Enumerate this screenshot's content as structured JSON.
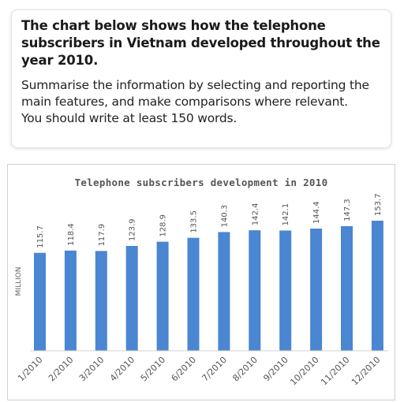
{
  "task": {
    "title": "The chart below shows how the telephone subscribers in Vietnam developed throughout the year 2010.",
    "instruction": "Summarise the information by selecting and reporting the main features, and make comparisons where relevant.",
    "requirement": "You should write at least 150 words."
  },
  "colors": {
    "bar": "#4a86d2",
    "axis": "#d0d0d0",
    "text": "#555555"
  },
  "chart_data": {
    "type": "bar",
    "title": "Telephone subscribers development in 2010",
    "xlabel": "",
    "ylabel": "MILLION",
    "categories": [
      "1/2010",
      "2/2010",
      "3/2010",
      "4/2010",
      "5/2010",
      "6/2010",
      "7/2010",
      "8/2010",
      "9/2010",
      "10/2010",
      "11/2010",
      "12/2010"
    ],
    "values": [
      115.7,
      118.4,
      117.9,
      123.9,
      128.9,
      133.5,
      140.3,
      142.4,
      142.1,
      144.4,
      147.3,
      153.7
    ],
    "data_labels": [
      "115.7",
      "118.4",
      "117.9",
      "123.9",
      "128.9",
      "133.5",
      "140.3",
      "142.4",
      "142.1",
      "144.4",
      "147.3",
      "153.7"
    ],
    "ylim": [
      0,
      153.7
    ],
    "grid": false,
    "legend": "none"
  }
}
